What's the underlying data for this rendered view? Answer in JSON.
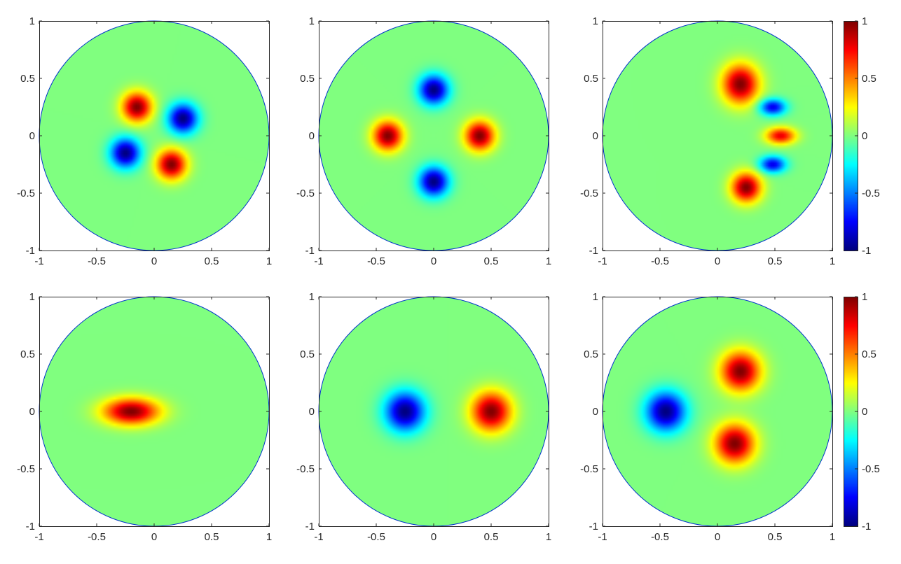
{
  "figure": {
    "colormap": "jet",
    "background": "#ffffff",
    "axis_color": "#262626",
    "circle_edge_color": "#0033cc",
    "field_zero_color": "#80ff80"
  },
  "chart_data": [
    {
      "type": "heatmap",
      "domain": "unit disk",
      "xlim": [
        -1,
        1
      ],
      "ylim": [
        -1,
        1
      ],
      "xticks": [
        "-1",
        "-0.5",
        "0",
        "0.5",
        "1"
      ],
      "yticks": [
        "1",
        "0.5",
        "0",
        "-0.5",
        "-1"
      ],
      "clim": [
        -1,
        1
      ],
      "colorbar": false,
      "blobs": [
        {
          "x": -0.15,
          "y": 0.25,
          "amp": 1.0,
          "sx": 0.09,
          "sy": 0.09
        },
        {
          "x": 0.25,
          "y": 0.15,
          "amp": -1.0,
          "sx": 0.09,
          "sy": 0.09
        },
        {
          "x": -0.25,
          "y": -0.15,
          "amp": -1.0,
          "sx": 0.09,
          "sy": 0.09
        },
        {
          "x": 0.15,
          "y": -0.25,
          "amp": 1.0,
          "sx": 0.09,
          "sy": 0.09
        }
      ]
    },
    {
      "type": "heatmap",
      "domain": "unit disk",
      "xlim": [
        -1,
        1
      ],
      "ylim": [
        -1,
        1
      ],
      "xticks": [
        "-1",
        "-0.5",
        "0",
        "0.5",
        "1"
      ],
      "yticks": [
        "1",
        "0.5",
        "0",
        "-0.5",
        "-1"
      ],
      "clim": [
        -1,
        1
      ],
      "colorbar": false,
      "blobs": [
        {
          "x": 0.0,
          "y": 0.4,
          "amp": -1.0,
          "sx": 0.09,
          "sy": 0.09
        },
        {
          "x": -0.4,
          "y": 0.0,
          "amp": 1.0,
          "sx": 0.09,
          "sy": 0.09
        },
        {
          "x": 0.4,
          "y": 0.0,
          "amp": 1.0,
          "sx": 0.09,
          "sy": 0.09
        },
        {
          "x": 0.0,
          "y": -0.4,
          "amp": -1.0,
          "sx": 0.09,
          "sy": 0.09
        }
      ]
    },
    {
      "type": "heatmap",
      "domain": "unit disk",
      "xlim": [
        -1,
        1
      ],
      "ylim": [
        -1,
        1
      ],
      "xticks": [
        "-1",
        "-0.5",
        "0",
        "0.5",
        "1"
      ],
      "yticks": [
        "1",
        "0.5",
        "0",
        "-0.5",
        "-1"
      ],
      "clim": [
        -1,
        1
      ],
      "colorbar": true,
      "colorbar_ticks": [
        "1",
        "0.5",
        "0",
        "-0.5",
        "-1"
      ],
      "blobs": [
        {
          "x": 0.2,
          "y": 0.45,
          "amp": 1.0,
          "sx": 0.11,
          "sy": 0.12
        },
        {
          "x": 0.48,
          "y": 0.25,
          "amp": -0.8,
          "sx": 0.08,
          "sy": 0.05
        },
        {
          "x": 0.55,
          "y": 0.0,
          "amp": 0.8,
          "sx": 0.09,
          "sy": 0.05
        },
        {
          "x": 0.48,
          "y": -0.25,
          "amp": -0.8,
          "sx": 0.08,
          "sy": 0.05
        },
        {
          "x": 0.25,
          "y": -0.45,
          "amp": 1.0,
          "sx": 0.09,
          "sy": 0.09
        }
      ]
    },
    {
      "type": "heatmap",
      "domain": "unit disk",
      "xlim": [
        -1,
        1
      ],
      "ylim": [
        -1,
        1
      ],
      "xticks": [
        "-1",
        "-0.5",
        "0",
        "0.5",
        "1"
      ],
      "yticks": [
        "1",
        "0.5",
        "0",
        "-0.5",
        "-1"
      ],
      "clim": [
        -1,
        1
      ],
      "colorbar": false,
      "blobs": [
        {
          "x": -0.2,
          "y": 0.0,
          "amp": 1.0,
          "sx": 0.17,
          "sy": 0.08
        }
      ]
    },
    {
      "type": "heatmap",
      "domain": "unit disk",
      "xlim": [
        -1,
        1
      ],
      "ylim": [
        -1,
        1
      ],
      "xticks": [
        "-1",
        "-0.5",
        "0",
        "0.5",
        "1"
      ],
      "yticks": [
        "1",
        "0.5",
        "0",
        "-0.5",
        "-1"
      ],
      "clim": [
        -1,
        1
      ],
      "colorbar": false,
      "blobs": [
        {
          "x": -0.25,
          "y": 0.0,
          "amp": -1.0,
          "sx": 0.12,
          "sy": 0.12
        },
        {
          "x": 0.5,
          "y": 0.0,
          "amp": 1.0,
          "sx": 0.12,
          "sy": 0.12
        }
      ]
    },
    {
      "type": "heatmap",
      "domain": "unit disk",
      "xlim": [
        -1,
        1
      ],
      "ylim": [
        -1,
        1
      ],
      "xticks": [
        "-1",
        "-0.5",
        "0",
        "0.5",
        "1"
      ],
      "yticks": [
        "1",
        "0.5",
        "0",
        "-0.5",
        "-1"
      ],
      "clim": [
        -1,
        1
      ],
      "colorbar": true,
      "colorbar_ticks": [
        "1",
        "0.5",
        "0",
        "-0.5",
        "-1"
      ],
      "blobs": [
        {
          "x": -0.45,
          "y": 0.0,
          "amp": -1.0,
          "sx": 0.12,
          "sy": 0.12
        },
        {
          "x": 0.2,
          "y": 0.35,
          "amp": 1.0,
          "sx": 0.12,
          "sy": 0.12
        },
        {
          "x": 0.15,
          "y": -0.28,
          "amp": 1.0,
          "sx": 0.12,
          "sy": 0.12
        }
      ]
    }
  ]
}
